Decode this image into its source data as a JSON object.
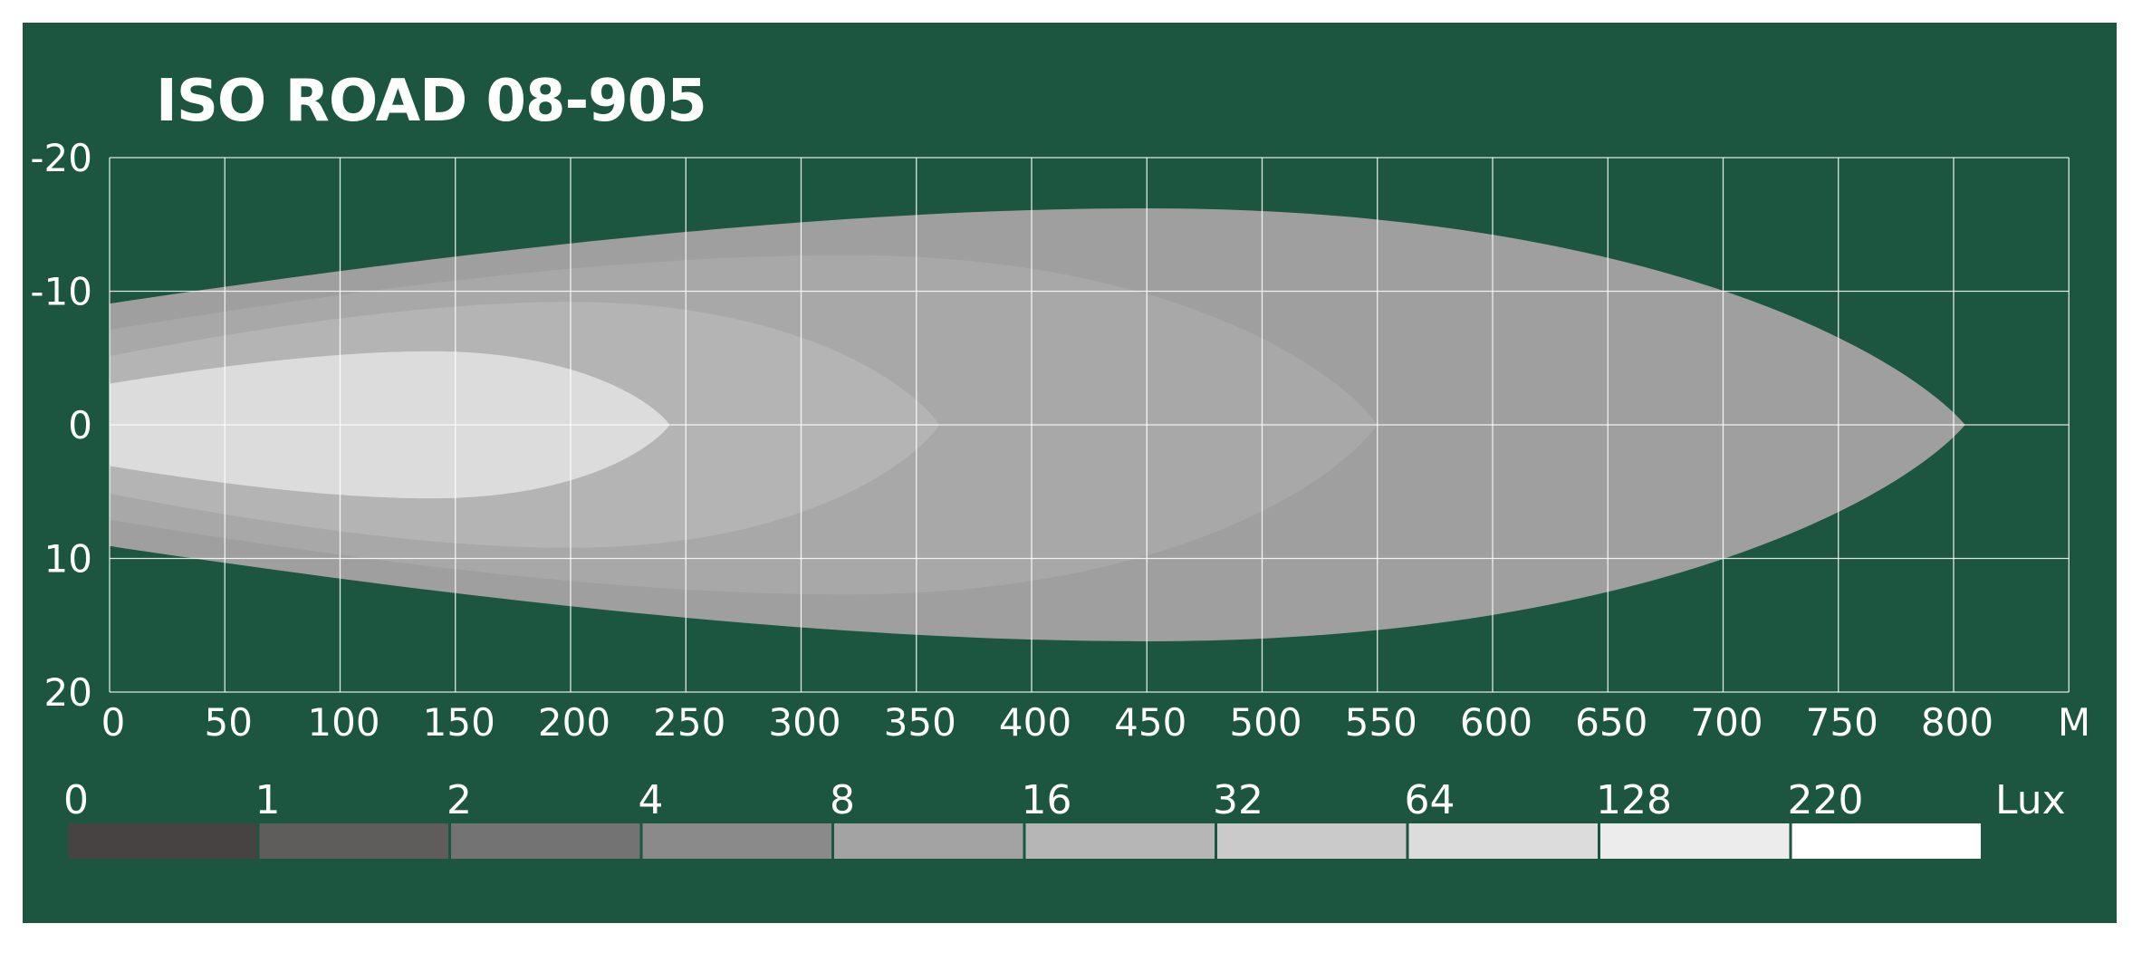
{
  "chart_data": {
    "type": "area",
    "title": "ISO ROAD 08-905",
    "xunit": "M",
    "x_ticks": [
      0,
      50,
      100,
      150,
      200,
      250,
      300,
      350,
      400,
      450,
      500,
      550,
      600,
      650,
      700,
      750,
      800
    ],
    "y_ticks": [
      -20,
      -10,
      0,
      10,
      20
    ],
    "xlim": [
      0,
      850
    ],
    "ylim": [
      -20,
      20
    ],
    "grid": true,
    "zones": [
      {
        "lux": 1,
        "reach": 805,
        "max_width": 16.2,
        "at_x": 450,
        "color": "#9f9f9f"
      },
      {
        "lux": 2,
        "reach": 550,
        "max_width": 12.7,
        "at_x": 320,
        "color": "#a8a8a8"
      },
      {
        "lux": 4,
        "reach": 360,
        "max_width": 9.2,
        "at_x": 200,
        "color": "#b4b4b4"
      },
      {
        "lux": 8,
        "reach": 243,
        "max_width": 5.5,
        "at_x": 140,
        "color": "#c9c9c9"
      },
      {
        "lux": 16,
        "reach": 243,
        "max_width": 5.5,
        "at_x": 140,
        "color": "#dcdcdc"
      }
    ],
    "legend": {
      "unit": "Lux",
      "labels": [
        "0",
        "1",
        "2",
        "4",
        "8",
        "16",
        "32",
        "64",
        "128",
        "220"
      ],
      "colors": [
        "#474343",
        "#5f5d5c",
        "#737373",
        "#8a8a8a",
        "#a3a3a3",
        "#b6b6b6",
        "#cacaca",
        "#dcdcdc",
        "#ececec",
        "#ffffff"
      ]
    }
  }
}
